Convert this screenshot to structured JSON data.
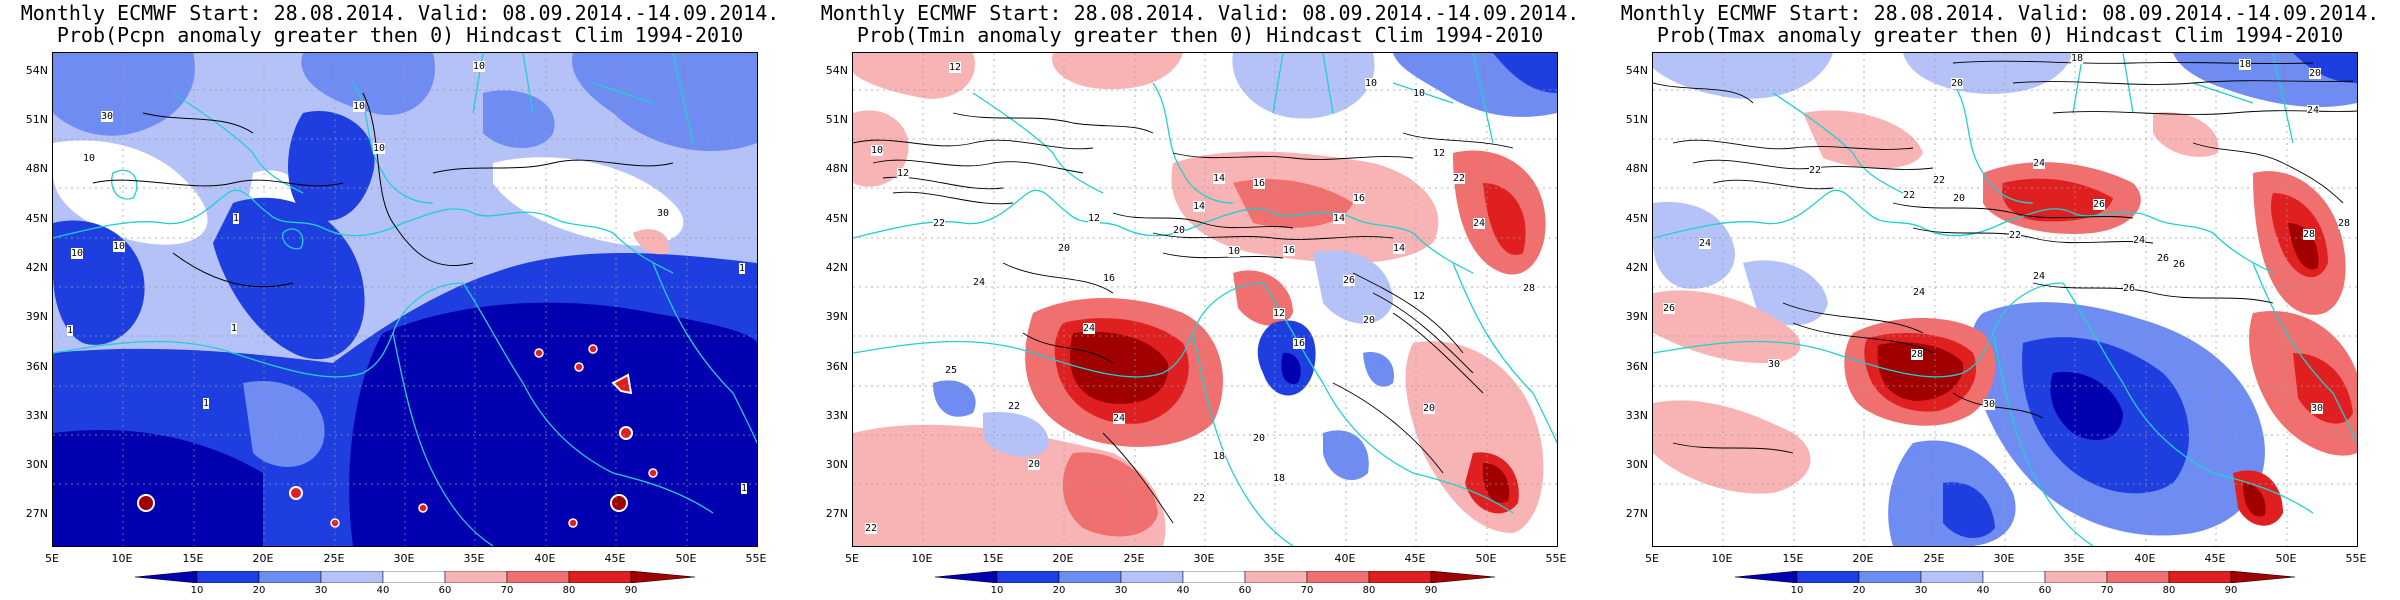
{
  "colorbar": {
    "levels": [
      "10",
      "20",
      "30",
      "40",
      "60",
      "70",
      "80",
      "90"
    ],
    "colors": [
      "#0000b0",
      "#1f3ee0",
      "#6f8cf2",
      "#b4c2f8",
      "#ffffff",
      "#f8b4b4",
      "#f06f6f",
      "#e02020",
      "#a00000"
    ]
  },
  "axes": {
    "lat_labels": [
      "54N",
      "51N",
      "48N",
      "45N",
      "42N",
      "39N",
      "36N",
      "33N",
      "30N",
      "27N"
    ],
    "lon_labels": [
      "5E",
      "10E",
      "15E",
      "20E",
      "25E",
      "30E",
      "35E",
      "40E",
      "45E",
      "50E",
      "55E"
    ]
  },
  "panels": [
    {
      "id": "pcpn",
      "title_line1": "Monthly ECMWF Start: 28.08.2014. Valid: 08.09.2014.-14.09.2014.",
      "title_line2": "Prob(Pcpn anomaly greater then 0) Hindcast Clim 1994-2010",
      "contour_labels": [
        "10",
        "10",
        "30",
        "10",
        "10",
        "10",
        "10",
        "1",
        "1",
        "1",
        "1",
        "30",
        "1",
        "1"
      ]
    },
    {
      "id": "tmin",
      "title_line1": "Monthly ECMWF Start: 28.08.2014. Valid: 08.09.2014.-14.09.2014.",
      "title_line2": "Prob(Tmin anomaly greater then 0) Hindcast Clim 1994-2010",
      "contour_labels": [
        "12",
        "10",
        "10",
        "12",
        "10",
        "12",
        "14",
        "16",
        "22",
        "14",
        "16",
        "24",
        "22",
        "20",
        "14",
        "16",
        "10",
        "12",
        "14",
        "20",
        "16",
        "12",
        "24",
        "26",
        "28",
        "24",
        "12",
        "20",
        "16",
        "20",
        "24",
        "25",
        "22",
        "20",
        "18",
        "18",
        "22",
        "20",
        "22"
      ]
    },
    {
      "id": "tmax",
      "title_line1": "Monthly ECMWF Start: 28.08.2014. Valid: 08.09.2014.-14.09.2014.",
      "title_line2": "Prob(Tmax anomaly greater then 0) Hindcast Clim 1994-2010",
      "contour_labels": [
        "18",
        "20",
        "18",
        "20",
        "24",
        "22",
        "22",
        "24",
        "22",
        "20",
        "26",
        "24",
        "22",
        "24",
        "28",
        "26",
        "24",
        "26",
        "28",
        "24",
        "26",
        "28",
        "30",
        "30",
        "26",
        "30"
      ]
    }
  ]
}
